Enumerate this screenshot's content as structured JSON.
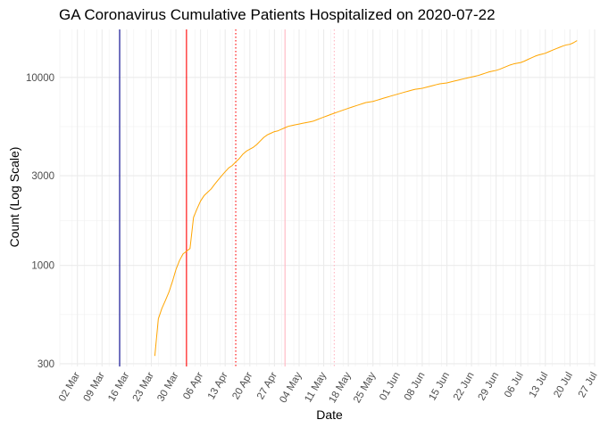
{
  "chart_data": {
    "type": "line",
    "title": "GA Coronavirus Cumulative Patients Hospitalized on 2020-07-22",
    "xlabel": "Date",
    "ylabel": "Count (Log Scale)",
    "y_scale": "log",
    "ylim": [
      290,
      18000
    ],
    "xlim": [
      "2020-02-26",
      "2020-07-27"
    ],
    "grid": true,
    "y_ticks": [
      300,
      1000,
      3000,
      10000
    ],
    "y_tick_labels": [
      "300",
      "1000",
      "3000",
      "10000"
    ],
    "x_tick_dates": [
      "2020-03-02",
      "2020-03-09",
      "2020-03-16",
      "2020-03-23",
      "2020-03-30",
      "2020-04-06",
      "2020-04-13",
      "2020-04-20",
      "2020-04-27",
      "2020-05-04",
      "2020-05-11",
      "2020-05-18",
      "2020-05-25",
      "2020-06-01",
      "2020-06-08",
      "2020-06-15",
      "2020-06-22",
      "2020-06-29",
      "2020-07-06",
      "2020-07-13",
      "2020-07-20",
      "2020-07-27"
    ],
    "x_tick_labels": [
      "02 Mar",
      "09 Mar",
      "16 Mar",
      "23 Mar",
      "30 Mar",
      "06 Apr",
      "13 Apr",
      "20 Apr",
      "27 Apr",
      "04 May",
      "11 May",
      "18 May",
      "25 May",
      "01 Jun",
      "08 Jun",
      "15 Jun",
      "22 Jun",
      "29 Jun",
      "06 Jul",
      "13 Jul",
      "20 Jul",
      "27 Jul"
    ],
    "series": [
      {
        "color": "#FFA500",
        "points": [
          [
            "2020-03-24",
            330
          ],
          [
            "2020-03-25",
            520
          ],
          [
            "2020-03-26",
            590
          ],
          [
            "2020-03-27",
            650
          ],
          [
            "2020-03-28",
            720
          ],
          [
            "2020-03-29",
            820
          ],
          [
            "2020-03-30",
            950
          ],
          [
            "2020-03-31",
            1060
          ],
          [
            "2020-04-01",
            1150
          ],
          [
            "2020-04-02",
            1190
          ],
          [
            "2020-04-03",
            1230
          ],
          [
            "2020-04-04",
            1800
          ],
          [
            "2020-04-05",
            2000
          ],
          [
            "2020-04-06",
            2200
          ],
          [
            "2020-04-07",
            2350
          ],
          [
            "2020-04-08",
            2450
          ],
          [
            "2020-04-09",
            2550
          ],
          [
            "2020-04-10",
            2700
          ],
          [
            "2020-04-11",
            2850
          ],
          [
            "2020-04-12",
            3000
          ],
          [
            "2020-04-13",
            3150
          ],
          [
            "2020-04-14",
            3300
          ],
          [
            "2020-04-15",
            3400
          ],
          [
            "2020-04-16",
            3550
          ],
          [
            "2020-04-17",
            3700
          ],
          [
            "2020-04-18",
            3900
          ],
          [
            "2020-04-19",
            4050
          ],
          [
            "2020-04-20",
            4150
          ],
          [
            "2020-04-21",
            4250
          ],
          [
            "2020-04-22",
            4400
          ],
          [
            "2020-04-23",
            4600
          ],
          [
            "2020-04-24",
            4800
          ],
          [
            "2020-04-25",
            4950
          ],
          [
            "2020-04-26",
            5050
          ],
          [
            "2020-04-27",
            5150
          ],
          [
            "2020-04-28",
            5200
          ],
          [
            "2020-04-29",
            5300
          ],
          [
            "2020-04-30",
            5400
          ],
          [
            "2020-05-01",
            5500
          ],
          [
            "2020-05-02",
            5550
          ],
          [
            "2020-05-03",
            5600
          ],
          [
            "2020-05-04",
            5650
          ],
          [
            "2020-05-05",
            5700
          ],
          [
            "2020-05-06",
            5750
          ],
          [
            "2020-05-07",
            5800
          ],
          [
            "2020-05-08",
            5850
          ],
          [
            "2020-05-09",
            5950
          ],
          [
            "2020-05-10",
            6050
          ],
          [
            "2020-05-11",
            6150
          ],
          [
            "2020-05-12",
            6250
          ],
          [
            "2020-05-13",
            6350
          ],
          [
            "2020-05-14",
            6450
          ],
          [
            "2020-05-15",
            6550
          ],
          [
            "2020-05-16",
            6650
          ],
          [
            "2020-05-17",
            6750
          ],
          [
            "2020-05-18",
            6850
          ],
          [
            "2020-05-19",
            6950
          ],
          [
            "2020-05-20",
            7050
          ],
          [
            "2020-05-21",
            7150
          ],
          [
            "2020-05-22",
            7250
          ],
          [
            "2020-05-23",
            7350
          ],
          [
            "2020-05-24",
            7400
          ],
          [
            "2020-05-25",
            7450
          ],
          [
            "2020-05-26",
            7550
          ],
          [
            "2020-05-27",
            7650
          ],
          [
            "2020-05-28",
            7750
          ],
          [
            "2020-05-29",
            7850
          ],
          [
            "2020-05-30",
            7950
          ],
          [
            "2020-05-31",
            8050
          ],
          [
            "2020-06-01",
            8150
          ],
          [
            "2020-06-02",
            8250
          ],
          [
            "2020-06-03",
            8350
          ],
          [
            "2020-06-04",
            8450
          ],
          [
            "2020-06-05",
            8550
          ],
          [
            "2020-06-06",
            8650
          ],
          [
            "2020-06-07",
            8700
          ],
          [
            "2020-06-08",
            8750
          ],
          [
            "2020-06-09",
            8850
          ],
          [
            "2020-06-10",
            8950
          ],
          [
            "2020-06-11",
            9050
          ],
          [
            "2020-06-12",
            9150
          ],
          [
            "2020-06-13",
            9250
          ],
          [
            "2020-06-14",
            9300
          ],
          [
            "2020-06-15",
            9350
          ],
          [
            "2020-06-16",
            9450
          ],
          [
            "2020-06-17",
            9550
          ],
          [
            "2020-06-18",
            9650
          ],
          [
            "2020-06-19",
            9750
          ],
          [
            "2020-06-20",
            9850
          ],
          [
            "2020-06-21",
            9950
          ],
          [
            "2020-06-22",
            10050
          ],
          [
            "2020-06-23",
            10150
          ],
          [
            "2020-06-24",
            10250
          ],
          [
            "2020-06-25",
            10400
          ],
          [
            "2020-06-26",
            10550
          ],
          [
            "2020-06-27",
            10700
          ],
          [
            "2020-06-28",
            10800
          ],
          [
            "2020-06-29",
            10900
          ],
          [
            "2020-06-30",
            11050
          ],
          [
            "2020-07-01",
            11250
          ],
          [
            "2020-07-02",
            11450
          ],
          [
            "2020-07-03",
            11650
          ],
          [
            "2020-07-04",
            11800
          ],
          [
            "2020-07-05",
            11900
          ],
          [
            "2020-07-06",
            12000
          ],
          [
            "2020-07-07",
            12200
          ],
          [
            "2020-07-08",
            12450
          ],
          [
            "2020-07-09",
            12700
          ],
          [
            "2020-07-10",
            12950
          ],
          [
            "2020-07-11",
            13150
          ],
          [
            "2020-07-12",
            13300
          ],
          [
            "2020-07-13",
            13450
          ],
          [
            "2020-07-14",
            13700
          ],
          [
            "2020-07-15",
            13950
          ],
          [
            "2020-07-16",
            14200
          ],
          [
            "2020-07-17",
            14450
          ],
          [
            "2020-07-18",
            14700
          ],
          [
            "2020-07-19",
            14900
          ],
          [
            "2020-07-20",
            15000
          ],
          [
            "2020-07-21",
            15300
          ],
          [
            "2020-07-22",
            15700
          ]
        ]
      }
    ],
    "vlines": [
      {
        "date": "2020-03-14",
        "color": "#00008B",
        "style": "solid"
      },
      {
        "date": "2020-04-02",
        "color": "#FF0000",
        "style": "solid"
      },
      {
        "date": "2020-04-16",
        "color": "#FF0000",
        "style": "dotted"
      },
      {
        "date": "2020-04-30",
        "color": "#FFB6C1",
        "style": "solid"
      },
      {
        "date": "2020-05-14",
        "color": "#FFB6C1",
        "style": "dotted"
      }
    ]
  }
}
